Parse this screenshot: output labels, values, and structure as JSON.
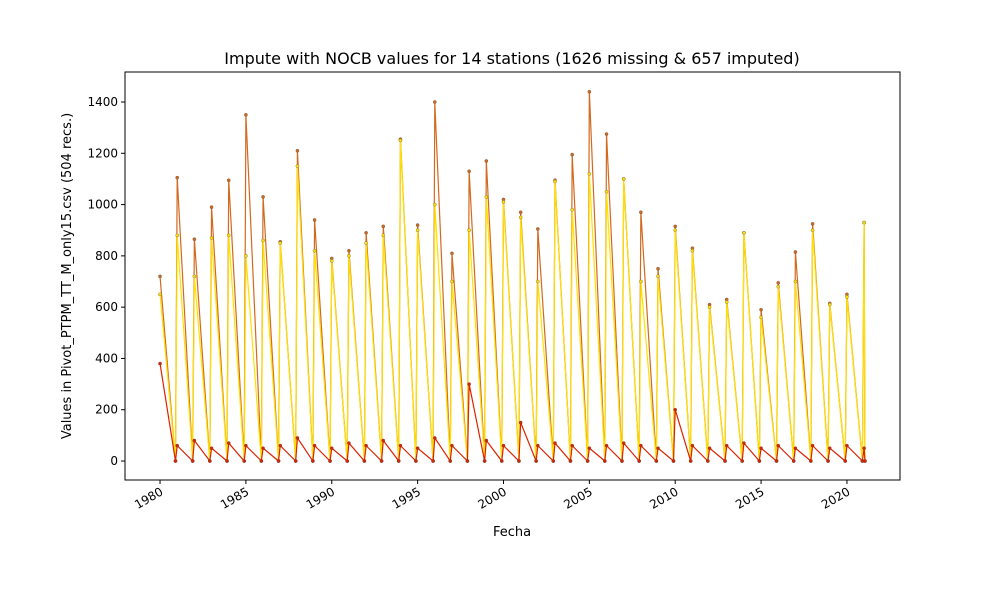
{
  "chart_data": {
    "type": "line",
    "title": "Impute with NOCB values for 14 stations (1626 missing & 657 imputed)",
    "xlabel": "Fecha",
    "ylabel": "Values in Pivot_PTPM_TT_M_only15.csv (504 recs.)",
    "x": [
      1980,
      1980.9,
      1981,
      1981.9,
      1982,
      1982.9,
      1983,
      1983.9,
      1984,
      1984.9,
      1985,
      1985.9,
      1986,
      1986.9,
      1987,
      1987.9,
      1988,
      1988.9,
      1989,
      1989.9,
      1990,
      1990.9,
      1991,
      1991.9,
      1992,
      1992.9,
      1993,
      1993.9,
      1994,
      1994.9,
      1995,
      1995.9,
      1996,
      1996.9,
      1997,
      1997.9,
      1998,
      1998.9,
      1999,
      1999.9,
      2000,
      2000.9,
      2001,
      2001.9,
      2002,
      2002.9,
      2003,
      2003.9,
      2004,
      2004.9,
      2005,
      2005.9,
      2006,
      2006.9,
      2007,
      2007.9,
      2008,
      2008.9,
      2009,
      2009.9,
      2010,
      2010.9,
      2011,
      2011.9,
      2012,
      2012.9,
      2013,
      2013.9,
      2014,
      2014.9,
      2015,
      2015.9,
      2016,
      2016.9,
      2017,
      2017.9,
      2018,
      2018.9,
      2019,
      2019.9,
      2020,
      2020.9,
      2021,
      2021.05
    ],
    "series": [
      {
        "color": "#d2691e",
        "values": [
          720,
          0,
          1105,
          0,
          865,
          0,
          990,
          0,
          1095,
          0,
          1350,
          0,
          1030,
          0,
          855,
          0,
          1210,
          0,
          940,
          0,
          790,
          0,
          820,
          0,
          890,
          0,
          915,
          0,
          1255,
          0,
          920,
          0,
          1400,
          0,
          810,
          0,
          1130,
          0,
          1170,
          0,
          1020,
          0,
          970,
          0,
          905,
          0,
          1095,
          0,
          1195,
          0,
          1440,
          0,
          1275,
          0,
          1100,
          0,
          970,
          0,
          750,
          0,
          915,
          0,
          830,
          0,
          610,
          0,
          630,
          0,
          890,
          0,
          590,
          0,
          695,
          0,
          815,
          0,
          925,
          0,
          615,
          0,
          650,
          0,
          930,
          0
        ]
      },
      {
        "color": "#ffe000",
        "values": [
          650,
          0,
          880,
          0,
          720,
          0,
          870,
          0,
          880,
          0,
          800,
          0,
          860,
          0,
          850,
          0,
          1150,
          0,
          820,
          0,
          780,
          0,
          800,
          0,
          850,
          0,
          880,
          0,
          1250,
          0,
          900,
          0,
          1000,
          0,
          700,
          0,
          900,
          0,
          1030,
          0,
          1010,
          0,
          950,
          0,
          700,
          0,
          1090,
          0,
          980,
          0,
          1120,
          0,
          1050,
          0,
          1100,
          0,
          700,
          0,
          720,
          0,
          900,
          0,
          820,
          0,
          600,
          0,
          620,
          0,
          890,
          0,
          560,
          0,
          680,
          0,
          700,
          0,
          900,
          0,
          610,
          0,
          640,
          0,
          930,
          0
        ]
      },
      {
        "color": "#dd2200",
        "values": [
          380,
          0,
          60,
          0,
          80,
          0,
          50,
          0,
          70,
          0,
          60,
          0,
          50,
          0,
          60,
          0,
          90,
          0,
          60,
          0,
          50,
          0,
          70,
          0,
          60,
          0,
          80,
          0,
          60,
          0,
          50,
          0,
          90,
          0,
          60,
          0,
          300,
          0,
          80,
          0,
          60,
          0,
          150,
          0,
          60,
          0,
          70,
          0,
          60,
          0,
          50,
          0,
          60,
          0,
          70,
          0,
          60,
          0,
          50,
          0,
          200,
          0,
          60,
          0,
          50,
          0,
          60,
          0,
          70,
          0,
          50,
          0,
          60,
          0,
          50,
          0,
          60,
          0,
          50,
          0,
          60,
          0,
          50,
          0
        ]
      }
    ],
    "xlim": [
      1977.96,
      2023.09
    ],
    "ylim": [
      -74,
      1517
    ],
    "xticks": [
      1980,
      1985,
      1990,
      1995,
      2000,
      2005,
      2010,
      2015,
      2020
    ],
    "yticks": [
      0,
      200,
      400,
      600,
      800,
      1000,
      1200,
      1400
    ],
    "grid": false
  }
}
